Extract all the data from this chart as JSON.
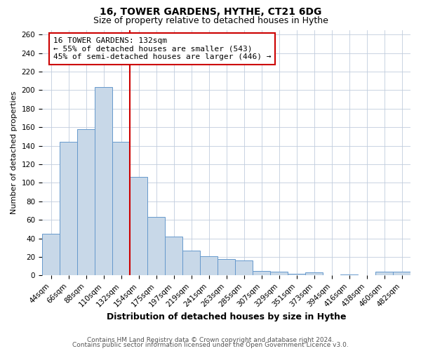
{
  "title": "16, TOWER GARDENS, HYTHE, CT21 6DG",
  "subtitle": "Size of property relative to detached houses in Hythe",
  "xlabel": "Distribution of detached houses by size in Hythe",
  "ylabel": "Number of detached properties",
  "bar_labels": [
    "44sqm",
    "66sqm",
    "88sqm",
    "110sqm",
    "132sqm",
    "154sqm",
    "175sqm",
    "197sqm",
    "219sqm",
    "241sqm",
    "263sqm",
    "285sqm",
    "307sqm",
    "329sqm",
    "351sqm",
    "373sqm",
    "394sqm",
    "416sqm",
    "438sqm",
    "460sqm",
    "482sqm"
  ],
  "bar_values": [
    45,
    144,
    158,
    203,
    144,
    106,
    63,
    42,
    27,
    21,
    18,
    16,
    5,
    4,
    2,
    3,
    0,
    1,
    0,
    4,
    4
  ],
  "bar_color": "#c8d8e8",
  "bar_edge_color": "#6699cc",
  "vline_index": 4,
  "vline_color": "#cc0000",
  "ylim": [
    0,
    265
  ],
  "yticks": [
    0,
    20,
    40,
    60,
    80,
    100,
    120,
    140,
    160,
    180,
    200,
    220,
    240,
    260
  ],
  "annotation_title": "16 TOWER GARDENS: 132sqm",
  "annotation_line1": "← 55% of detached houses are smaller (543)",
  "annotation_line2": "45% of semi-detached houses are larger (446) →",
  "annotation_box_color": "#ffffff",
  "annotation_box_edge": "#cc0000",
  "footer1": "Contains HM Land Registry data © Crown copyright and database right 2024.",
  "footer2": "Contains public sector information licensed under the Open Government Licence v3.0.",
  "background_color": "#ffffff",
  "grid_color": "#c0ccdd",
  "title_fontsize": 10,
  "subtitle_fontsize": 9,
  "xlabel_fontsize": 9,
  "ylabel_fontsize": 8,
  "tick_fontsize": 7.5,
  "annotation_fontsize": 8,
  "footer_fontsize": 6.5
}
